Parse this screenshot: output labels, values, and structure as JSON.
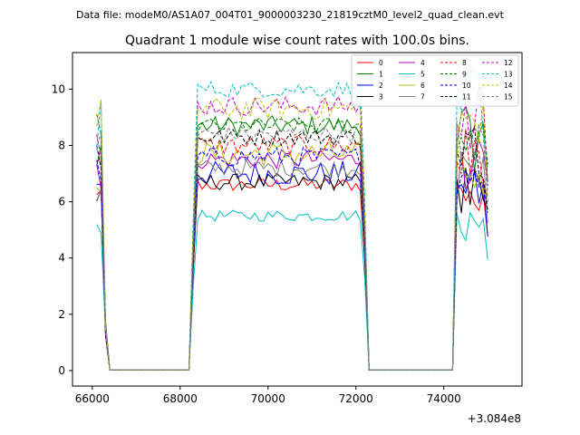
{
  "chart_data": {
    "type": "line",
    "suptitle": "Data file: modeM0/AS1A07_004T01_9000003230_21819cztM0_level2_quad_clean.evt",
    "title": "Quadrant 1 module wise count rates with 100.0s bins.",
    "xlabel": "",
    "ylabel": "",
    "x_offset_label": "+3.084e8",
    "xlim": [
      65550,
      75780
    ],
    "ylim": [
      -0.55,
      11.3
    ],
    "xticks": [
      66000,
      68000,
      70000,
      72000,
      74000
    ],
    "yticks": [
      0,
      2,
      4,
      6,
      8,
      10
    ],
    "legend_position": "upper-right",
    "legend_ncol": 4,
    "segments": [
      {
        "start": 66100,
        "end": 66400,
        "points": 4
      },
      {
        "start": 68200,
        "end": 72300,
        "points": 42
      },
      {
        "start": 74200,
        "end": 75000,
        "points": 9
      }
    ],
    "series": [
      {
        "name": "0",
        "color": "#ff0000",
        "dash": false,
        "level": 6.6,
        "noise": 0.25
      },
      {
        "name": "1",
        "color": "#008000",
        "dash": false,
        "level": 8.7,
        "noise": 0.35
      },
      {
        "name": "2",
        "color": "#0000ff",
        "dash": false,
        "level": 7.0,
        "noise": 0.45
      },
      {
        "name": "3",
        "color": "#000000",
        "dash": false,
        "level": 6.7,
        "noise": 0.3
      },
      {
        "name": "4",
        "color": "#bf00bf",
        "dash": false,
        "level": 7.5,
        "noise": 0.35
      },
      {
        "name": "5",
        "color": "#00bfbf",
        "dash": false,
        "level": 5.5,
        "noise": 0.2
      },
      {
        "name": "6",
        "color": "#bfbf00",
        "dash": false,
        "level": 7.7,
        "noise": 0.45
      },
      {
        "name": "7",
        "color": "#808080",
        "dash": false,
        "level": 7.2,
        "noise": 0.3
      },
      {
        "name": "8",
        "color": "#ff0000",
        "dash": true,
        "level": 8.0,
        "noise": 0.35
      },
      {
        "name": "9",
        "color": "#008000",
        "dash": true,
        "level": 8.7,
        "noise": 0.3
      },
      {
        "name": "10",
        "color": "#0000ff",
        "dash": true,
        "level": 7.6,
        "noise": 0.35
      },
      {
        "name": "11",
        "color": "#000000",
        "dash": true,
        "level": 8.3,
        "noise": 0.3
      },
      {
        "name": "12",
        "color": "#bf00bf",
        "dash": true,
        "level": 9.4,
        "noise": 0.35
      },
      {
        "name": "13",
        "color": "#00bfbf",
        "dash": true,
        "level": 10.0,
        "noise": 0.3
      },
      {
        "name": "14",
        "color": "#bfbf00",
        "dash": true,
        "level": 9.3,
        "noise": 0.4
      },
      {
        "name": "15",
        "color": "#808080",
        "dash": true,
        "level": 8.4,
        "noise": 0.3
      }
    ]
  }
}
